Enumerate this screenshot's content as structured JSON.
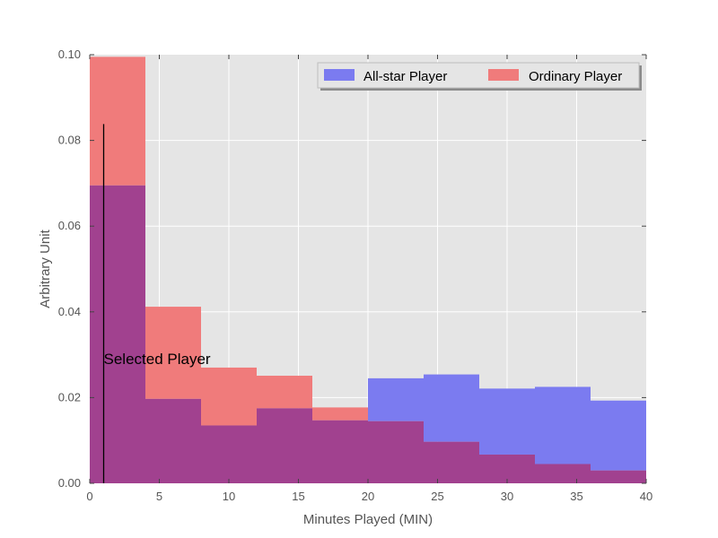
{
  "chart_data": {
    "type": "bar",
    "subtype": "overlapping-histogram",
    "title": "",
    "xlabel": "Minutes Played (MIN)",
    "ylabel": "Arbitrary Unit",
    "xlim": [
      0,
      40
    ],
    "ylim": [
      0,
      0.1
    ],
    "xticks": [
      0,
      5,
      10,
      15,
      20,
      25,
      30,
      35,
      40
    ],
    "yticks": [
      0.0,
      0.02,
      0.04,
      0.06,
      0.08,
      0.1
    ],
    "ytick_labels": [
      "0.00",
      "0.02",
      "0.04",
      "0.06",
      "0.08",
      "0.10"
    ],
    "grid": true,
    "legend_position": "top-right",
    "bin_edges": [
      0,
      4,
      8,
      12,
      16,
      20,
      24,
      28,
      32,
      36,
      40
    ],
    "series": [
      {
        "name": "All-star Player",
        "color": "#7b7bf0",
        "values": [
          0.0695,
          0.0197,
          0.0135,
          0.0175,
          0.0147,
          0.0245,
          0.0254,
          0.0221,
          0.0225,
          0.0193
        ]
      },
      {
        "name": "Ordinary Player",
        "color": "#f07b7b",
        "values": [
          0.0995,
          0.0412,
          0.027,
          0.0251,
          0.0177,
          0.0145,
          0.0097,
          0.0067,
          0.0045,
          0.003
        ]
      }
    ],
    "annotation": {
      "text": "Selected Player",
      "x": 1.0,
      "y_top": 0.0838
    }
  },
  "colors": {
    "plot_background": "#e5e5e5",
    "grid": "#ffffff",
    "overlap": "#a1418f",
    "axis_text": "#555555"
  }
}
